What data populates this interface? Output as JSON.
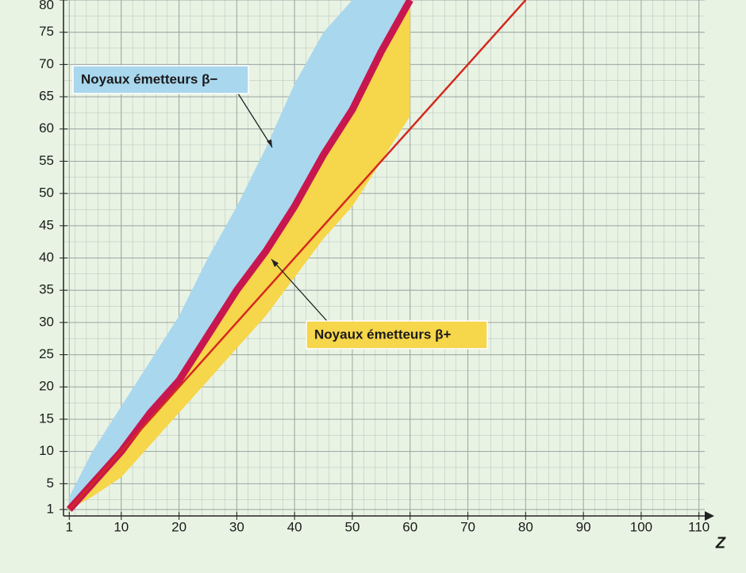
{
  "chart_data": {
    "type": "band",
    "x_label": "Z",
    "xlim": [
      0,
      111
    ],
    "ylim": [
      0,
      80
    ],
    "xticks": [
      1,
      10,
      20,
      30,
      40,
      50,
      60,
      70,
      80,
      90,
      100,
      110
    ],
    "yticks": [
      1,
      5,
      10,
      15,
      20,
      25,
      30,
      35,
      40,
      45,
      50,
      55,
      60,
      65,
      70,
      75,
      80
    ],
    "grid": true,
    "x": [
      1,
      5,
      10,
      15,
      20,
      25,
      30,
      35,
      40,
      45,
      50,
      55,
      60
    ],
    "series": [
      {
        "name": "Noyaux émetteurs β−",
        "color": "#a9d7ee",
        "values": [
          3,
          10,
          17,
          24,
          31,
          40,
          48,
          57,
          67,
          75,
          80,
          80,
          80
        ]
      },
      {
        "name": "Noyaux émetteurs β+",
        "color": "#f6d64a",
        "values": [
          1,
          3,
          6,
          11,
          16,
          21,
          26,
          31,
          37,
          43,
          48,
          55,
          62
        ]
      },
      {
        "color": "#c8174f",
        "values": [
          1,
          5,
          10,
          16,
          21,
          28,
          35,
          41,
          48,
          56,
          63,
          72,
          80
        ]
      }
    ],
    "reference_line": {
      "color": "#d42a1e",
      "x": [
        1,
        80
      ],
      "y": [
        1,
        80
      ]
    }
  }
}
